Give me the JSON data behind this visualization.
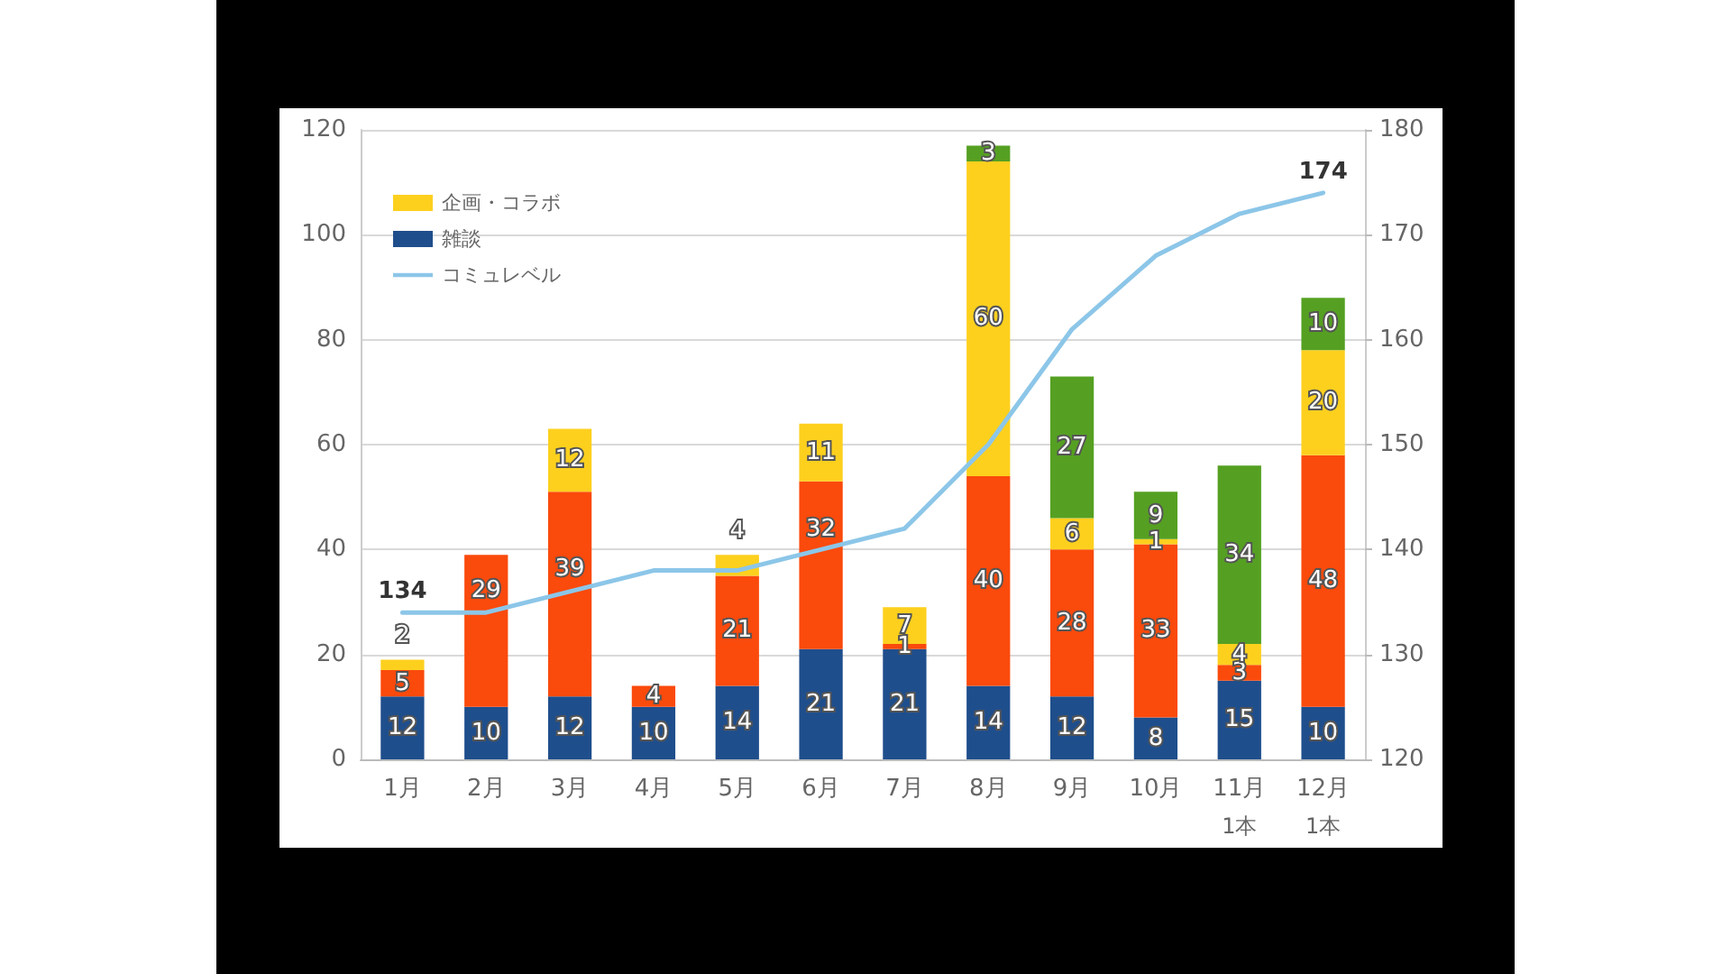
{
  "chart_data": {
    "type": "bar",
    "stacked": true,
    "categories": [
      "1月",
      "2月",
      "3月",
      "4月",
      "5月",
      "6月",
      "7月",
      "8月",
      "9月",
      "10月",
      "11月",
      "12月"
    ],
    "series": [
      {
        "name": "雑談",
        "color": "#1f4e8c",
        "values": [
          12,
          10,
          12,
          10,
          14,
          21,
          21,
          14,
          12,
          8,
          15,
          10
        ]
      },
      {
        "color": "#fa4a0c",
        "values": [
          5,
          29,
          39,
          4,
          21,
          32,
          1,
          40,
          28,
          33,
          3,
          48
        ]
      },
      {
        "name": "企画・コラボ",
        "color": "#fdd01e",
        "values": [
          2,
          null,
          12,
          null,
          4,
          11,
          7,
          60,
          6,
          1,
          4,
          20
        ]
      },
      {
        "color": "#55a022",
        "values": [
          null,
          null,
          null,
          null,
          null,
          null,
          null,
          3,
          27,
          9,
          34,
          10
        ]
      },
      {
        "name": "コミュレベル",
        "type": "line",
        "axis": "y2",
        "color": "#8cc6e8",
        "values": [
          134,
          134,
          136,
          138,
          138,
          140,
          142,
          150,
          161,
          168,
          172,
          174
        ],
        "value_labels": [
          "134",
          null,
          null,
          null,
          null,
          null,
          null,
          null,
          null,
          null,
          null,
          "174"
        ]
      }
    ],
    "ylim": [
      0,
      120
    ],
    "yticks": [
      0,
      20,
      40,
      60,
      80,
      100,
      120
    ],
    "y2lim": [
      120,
      180
    ],
    "y2ticks": [
      120,
      130,
      140,
      150,
      160,
      170,
      180
    ],
    "grid": "y",
    "legend": "top left",
    "marker": "none",
    "line_style": "solid",
    "data_labels": true,
    "annotations": [
      "1本",
      "1本"
    ]
  }
}
